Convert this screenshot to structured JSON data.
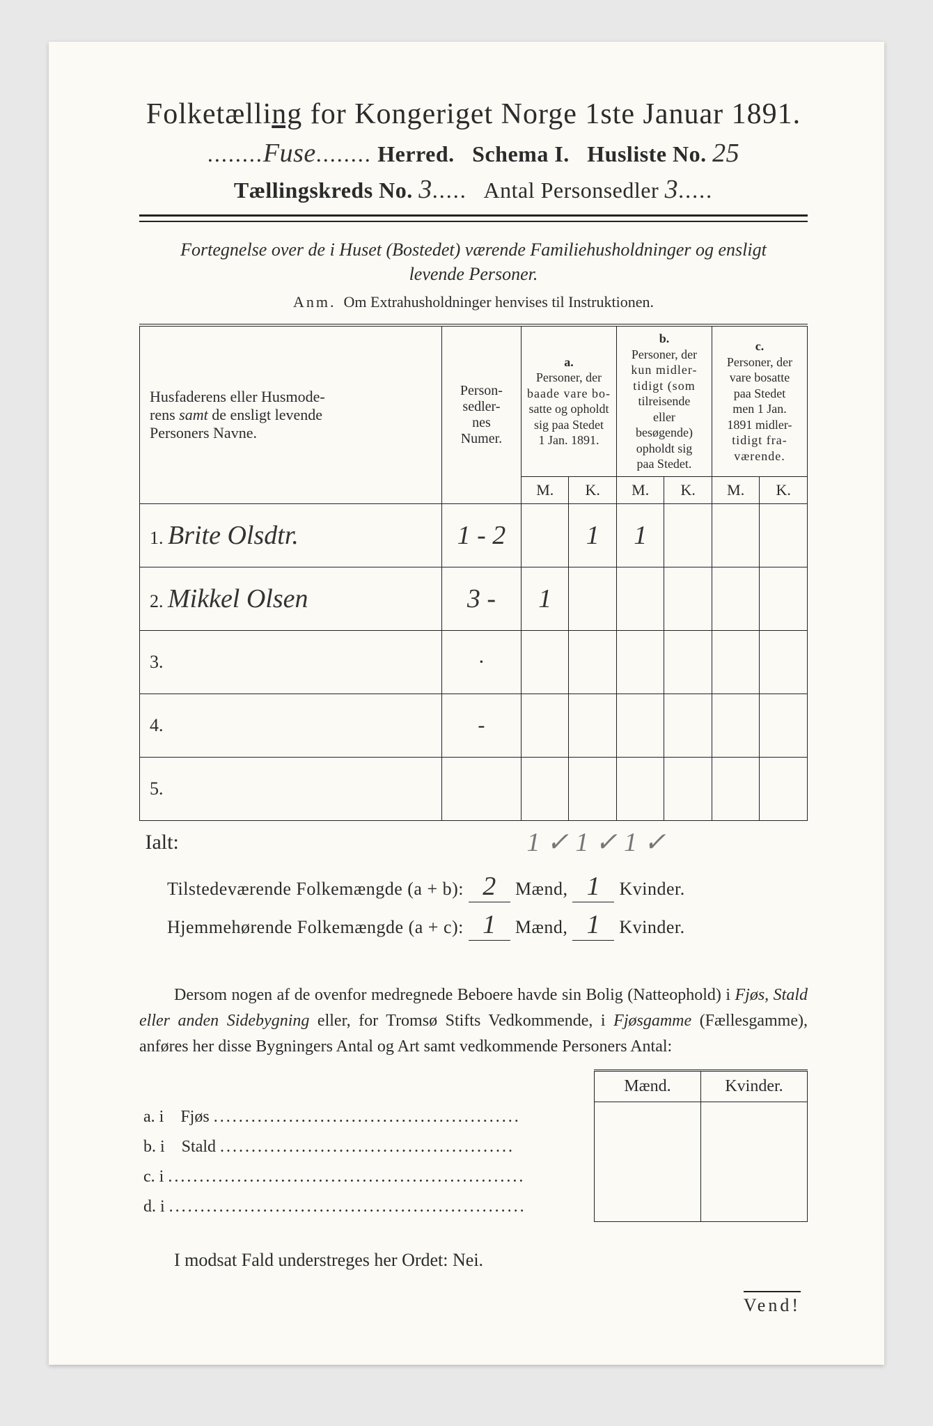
{
  "header": {
    "title_pre": "Folketælli",
    "title_underlined": "ng",
    "title_post": " for Kongeriget Norge 1ste Januar 1891.",
    "herred_hand": "Fuse",
    "herred_label": " Herred.",
    "schema": "Schema I.",
    "husliste_label": "Husliste No.",
    "husliste_no": "25",
    "kreds_label": "Tællingskreds No.",
    "kreds_no": "3",
    "antal_label": "Antal Personsedler",
    "antal_no": "3"
  },
  "subhead": "Fortegnelse over de i Huset (Bostedet) værende Familiehusholdninger og ensligt levende Personer.",
  "anm_label": "Anm.",
  "anm_text": "Om Extrahusholdninger henvises til Instruktionen.",
  "table": {
    "col_names_1": "Husfaderens eller Husmode-",
    "col_names_2": "rens ",
    "col_names_samt": "samt",
    "col_names_3": " de ensligt levende",
    "col_names_4": "Personers Navne.",
    "col_pnum_1": "Person-",
    "col_pnum_2": "sedler-",
    "col_pnum_3": "nes",
    "col_pnum_4": "Numer.",
    "col_a_top": "a.",
    "col_a_1": "Personer, der",
    "col_a_2": "baade vare bo-",
    "col_a_3": "satte og opholdt",
    "col_a_4": "sig paa Stedet",
    "col_a_5": "1 Jan. 1891.",
    "col_b_top": "b.",
    "col_b_1": "Personer, der",
    "col_b_2": "kun midler-",
    "col_b_3": "tidigt (som",
    "col_b_4": "tilreisende",
    "col_b_5": "eller",
    "col_b_6": "besøgende)",
    "col_b_7": "opholdt sig",
    "col_b_8": "paa Stedet.",
    "col_c_top": "c.",
    "col_c_1": "Personer, der",
    "col_c_2": "vare bosatte",
    "col_c_3": "paa Stedet",
    "col_c_4": "men 1 Jan.",
    "col_c_5": "1891 midler-",
    "col_c_6": "tidigt fra-",
    "col_c_7": "værende.",
    "mk_m": "M.",
    "mk_k": "K.",
    "rows": [
      {
        "n": "1.",
        "name": "Brite Olsdtr.",
        "pnum": "1 - 2",
        "am": "",
        "ak": "1",
        "bm": "1",
        "bk": "",
        "cm": "",
        "ck": ""
      },
      {
        "n": "2.",
        "name": "Mikkel Olsen",
        "pnum": "3 -",
        "am": "1",
        "ak": "",
        "bm": "",
        "bk": "",
        "cm": "",
        "ck": ""
      },
      {
        "n": "3.",
        "name": "",
        "pnum": "",
        "am": "",
        "ak": "",
        "bm": "",
        "bk": "",
        "cm": "",
        "ck": ""
      },
      {
        "n": "4.",
        "name": "",
        "pnum": "",
        "am": "",
        "ak": "",
        "bm": "",
        "bk": "",
        "cm": "",
        "ck": ""
      },
      {
        "n": "5.",
        "name": "",
        "pnum": "",
        "am": "",
        "ak": "",
        "bm": "",
        "bk": "",
        "cm": "",
        "ck": ""
      }
    ],
    "ialt": "Ialt:",
    "ialt_vals": "1 ✓  1 ✓   1 ✓"
  },
  "sums": {
    "tilst_label": "Tilstedeværende Folkemængde (a + b):",
    "tilst_m": "2",
    "tilst_k": "1",
    "hjem_label": "Hjemmehørende Folkemængde (a + c):",
    "hjem_m": "1",
    "hjem_k": "1",
    "maend": " Mænd, ",
    "kvinder": " Kvinder."
  },
  "para": "Dersom nogen af de ovenfor medregnede Beboere havde sin Bolig (Natteophold) i Fjøs, Stald eller anden Sidebygning eller, for Tromsø Stifts Vedkommende, i Fjøsgamme (Fællesgamme), anføres her disse Bygningers Antal og Art samt vedkommende Personers Antal:",
  "sidetab": {
    "maend": "Mænd.",
    "kvinder": "Kvinder.",
    "rows": [
      {
        "lab": "a.  i",
        "txt": "Fjøs",
        "dots": "................................................."
      },
      {
        "lab": "b.  i",
        "txt": "Stald",
        "dots": "..............................................."
      },
      {
        "lab": "c.  i",
        "txt": "",
        "dots": "........................................................."
      },
      {
        "lab": "d.  i",
        "txt": "",
        "dots": "........................................................."
      }
    ]
  },
  "nei": "I modsat Fald understreges her Ordet: Nei.",
  "vend": "Vend!"
}
